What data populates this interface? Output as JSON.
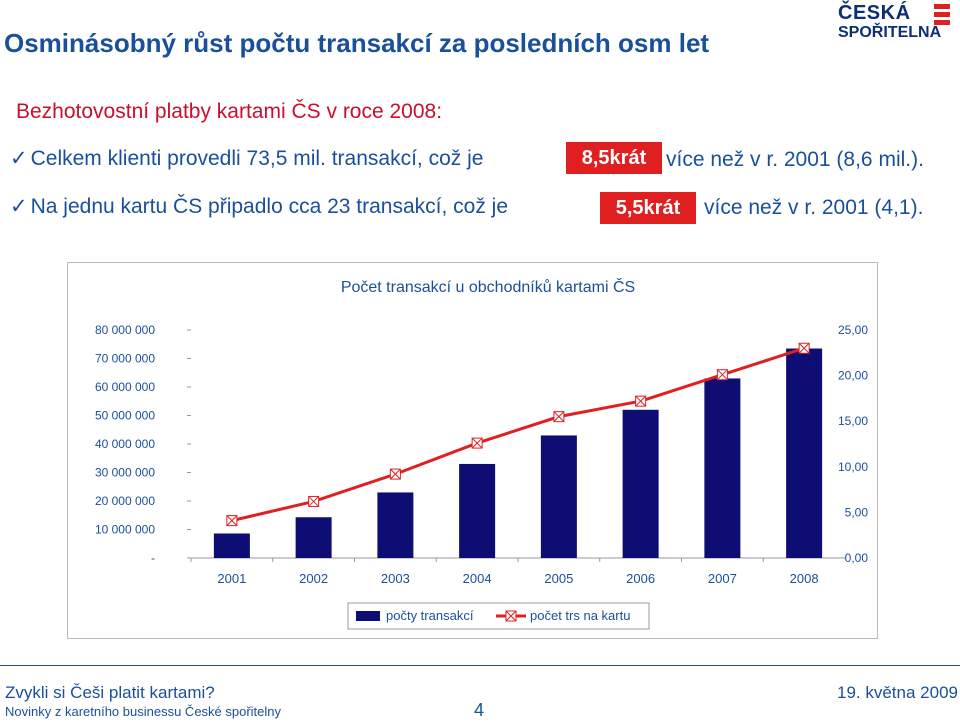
{
  "header": {
    "title": "Osminásobný růst počtu transakcí za posledních osm let",
    "logo_line1": "ČESKÁ",
    "logo_line2": "SPOŘITELNA"
  },
  "content": {
    "subtitle": "Bezhotovostní platby kartami ČS v roce 2008:",
    "bullets": [
      {
        "text": "Celkem klienti provedli 73,5 mil. transakcí, což je",
        "highlight": "8,5krát",
        "tail": "více než v r. 2001 (8,6 mil.)."
      },
      {
        "text": "Na jednu kartu ČS připadlo cca 23 transakcí, což je",
        "highlight": "5,5krát",
        "tail": "více než v r. 2001 (4,1)."
      }
    ]
  },
  "chart_data": {
    "type": "bar",
    "title": "Počet transakcí u obchodníků kartami ČS",
    "categories": [
      "2001",
      "2002",
      "2003",
      "2004",
      "2005",
      "2006",
      "2007",
      "2008"
    ],
    "series": [
      {
        "name": "počty transakcí",
        "type": "bar",
        "axis": "left",
        "values": [
          8600000,
          14300000,
          23000000,
          33000000,
          43000000,
          52000000,
          63000000,
          73500000
        ]
      },
      {
        "name": "počet trs na kartu",
        "type": "line",
        "axis": "right",
        "values": [
          4.1,
          6.2,
          9.2,
          12.6,
          15.5,
          17.2,
          20.1,
          23.0
        ]
      }
    ],
    "y_left": {
      "min": 0,
      "max": 80000000,
      "tick_labels": [
        "-",
        "10 000 000",
        "20 000 000",
        "30 000 000",
        "40 000 000",
        "50 000 000",
        "60 000 000",
        "70 000 000",
        "80 000 000"
      ]
    },
    "y_right": {
      "min": 0,
      "max": 25,
      "tick_labels": [
        "0,00",
        "5,00",
        "10,00",
        "15,00",
        "20,00",
        "25,00"
      ]
    },
    "legend_position": "bottom",
    "grid": false,
    "colors": {
      "bar": "#0d0d73",
      "line": "#e02020"
    }
  },
  "footer": {
    "event": "Zvykli si Češi platit kartami?",
    "subtitle": "Novinky z karetního businessu České spořitelny",
    "page": "4",
    "date": "19. května 2009"
  }
}
